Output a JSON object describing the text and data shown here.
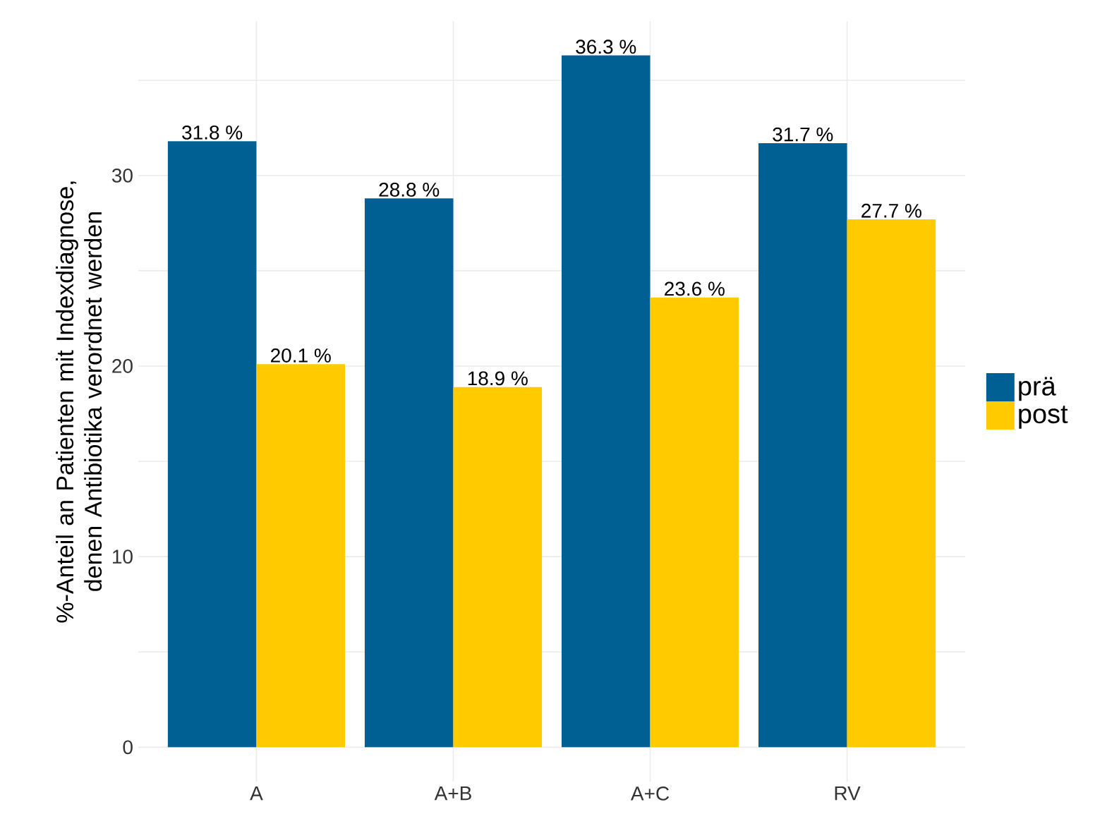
{
  "chart_data": {
    "type": "bar",
    "ylabel": "%-Anteil an Patienten mit Indexdiagnose, denen Antibiotika verordnet werden",
    "categories": [
      "A",
      "A+B",
      "A+C",
      "RV"
    ],
    "series": [
      {
        "name": "prä",
        "color": "#006094",
        "values": [
          31.8,
          28.8,
          36.3,
          31.7
        ],
        "value_labels": [
          "31.8 %",
          "28.8 %",
          "36.3 %",
          "31.7 %"
        ]
      },
      {
        "name": "post",
        "color": "#ffcb00",
        "values": [
          20.1,
          18.9,
          23.6,
          27.7
        ],
        "value_labels": [
          "20.1 %",
          "18.9 %",
          "23.6 %",
          "27.7 %"
        ]
      }
    ],
    "ylim": [
      -1.8,
      38.1
    ],
    "yticks": [
      0,
      {
        "value": 5,
        "label": null
      },
      10,
      {
        "value": 15,
        "label": null
      },
      20,
      {
        "value": 25,
        "label": null
      },
      30,
      {
        "value": 35,
        "label": null
      }
    ],
    "grid": true,
    "legend": "right"
  }
}
